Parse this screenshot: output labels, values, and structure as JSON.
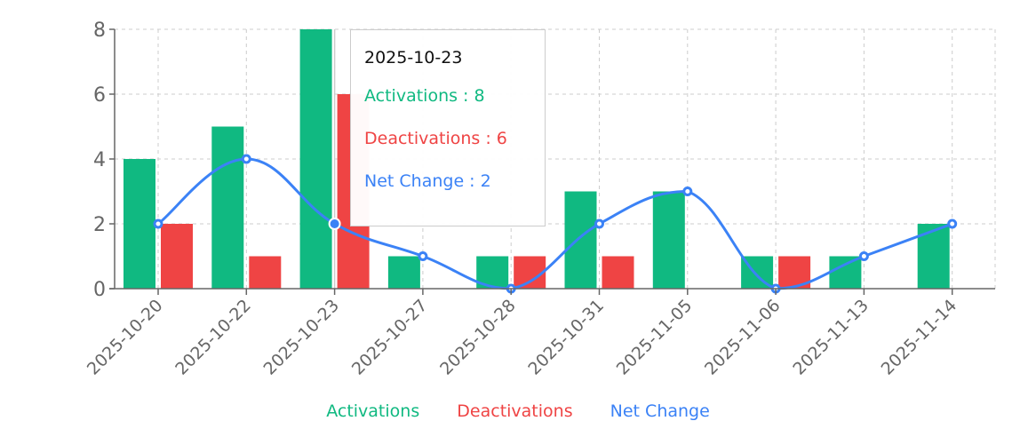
{
  "chart_data": {
    "type": "bar",
    "title": "",
    "xlabel": "",
    "ylabel": "",
    "ylim": [
      0,
      8
    ],
    "yticks": [
      0,
      2,
      4,
      6,
      8
    ],
    "grid": true,
    "legend_position": "bottom",
    "categories": [
      "2025-10-20",
      "2025-10-22",
      "2025-10-23",
      "2025-10-27",
      "2025-10-28",
      "2025-10-31",
      "2025-11-05",
      "2025-11-06",
      "2025-11-13",
      "2025-11-14"
    ],
    "series": [
      {
        "name": "Activations",
        "type": "bar",
        "color": "#10b981",
        "values": [
          4,
          5,
          8,
          1,
          1,
          3,
          3,
          1,
          1,
          2
        ]
      },
      {
        "name": "Deactivations",
        "type": "bar",
        "color": "#ef4444",
        "values": [
          2,
          1,
          6,
          0,
          1,
          1,
          0,
          1,
          0,
          0
        ]
      },
      {
        "name": "Net Change",
        "type": "line",
        "color": "#3b82f6",
        "values": [
          2,
          4,
          2,
          1,
          0,
          2,
          3,
          0,
          1,
          2
        ]
      }
    ]
  },
  "tooltip": {
    "title": "2025-10-23",
    "rows": [
      {
        "label": "Activations : 8",
        "color": "#10b981"
      },
      {
        "label": "Deactivations : 6",
        "color": "#ef4444"
      },
      {
        "label": "Net Change : 2",
        "color": "#3b82f6"
      }
    ],
    "active_index": 2
  },
  "legend": {
    "items": [
      {
        "label": "Activations",
        "color": "#10b981"
      },
      {
        "label": "Deactivations",
        "color": "#ef4444"
      },
      {
        "label": "Net Change",
        "color": "#3b82f6"
      }
    ]
  }
}
